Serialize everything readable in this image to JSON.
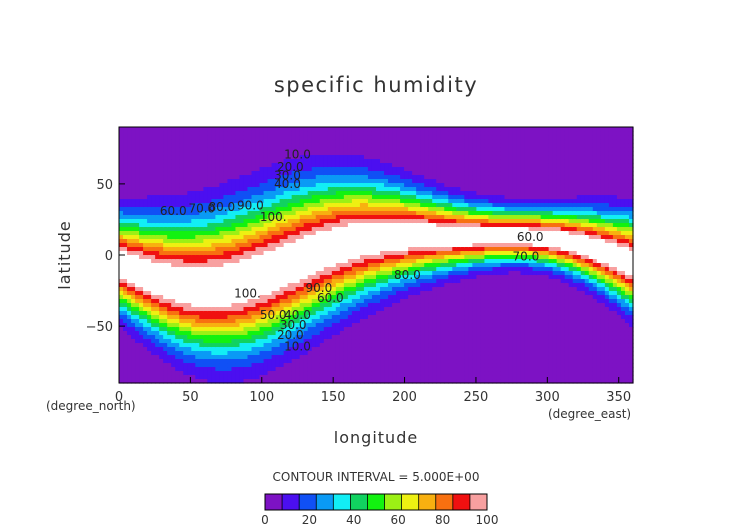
{
  "chart_data": {
    "type": "contour",
    "title": "specific humidity",
    "xlabel": "longitude",
    "ylabel": "latitude",
    "x_unit": "(degree_east)",
    "y_unit": "(degree_north)",
    "xlim": [
      0,
      360
    ],
    "ylim": [
      -90,
      90
    ],
    "x_ticks": [
      0,
      50,
      100,
      150,
      200,
      250,
      300,
      350
    ],
    "y_ticks": [
      -50,
      0,
      50
    ],
    "contour_interval_text": "CONTOUR INTERVAL = 5.000E+00",
    "contour_labels": [
      {
        "text": "10.0",
        "lon": 125,
        "lat": 68
      },
      {
        "text": "20.0",
        "lon": 120,
        "lat": 59
      },
      {
        "text": "30.0",
        "lon": 118,
        "lat": 53
      },
      {
        "text": "40.0",
        "lon": 118,
        "lat": 47
      },
      {
        "text": "60.0",
        "lon": 38,
        "lat": 28
      },
      {
        "text": "70.0",
        "lon": 58,
        "lat": 30
      },
      {
        "text": "80.0",
        "lon": 72,
        "lat": 31
      },
      {
        "text": "90.0",
        "lon": 92,
        "lat": 32
      },
      {
        "text": "100.",
        "lon": 108,
        "lat": 24
      },
      {
        "text": "60.0",
        "lon": 288,
        "lat": 10
      },
      {
        "text": "70.0",
        "lon": 285,
        "lat": -4
      },
      {
        "text": "80.0",
        "lon": 202,
        "lat": -17
      },
      {
        "text": "100.",
        "lon": 90,
        "lat": -30
      },
      {
        "text": "90.0",
        "lon": 140,
        "lat": -26
      },
      {
        "text": "60.0",
        "lon": 148,
        "lat": -33
      },
      {
        "text": "50.0",
        "lon": 108,
        "lat": -45
      },
      {
        "text": "40.0",
        "lon": 125,
        "lat": -45
      },
      {
        "text": "30.0",
        "lon": 122,
        "lat": -52
      },
      {
        "text": "20.0",
        "lon": 120,
        "lat": -59
      },
      {
        "text": "10.0",
        "lon": 125,
        "lat": -67
      }
    ],
    "colorbar": {
      "min": 0,
      "max": 100,
      "step": 10,
      "tick_labels": [
        "0",
        "20",
        "40",
        "60",
        "80",
        "100"
      ],
      "colors": [
        "#7d12c4",
        "#4b0ff0",
        "#1050f5",
        "#0a9af5",
        "#12eef5",
        "#11d260",
        "#12f210",
        "#9cf015",
        "#eef012",
        "#f8b010",
        "#f87010",
        "#f01010",
        "#f8a0a0"
      ]
    }
  }
}
